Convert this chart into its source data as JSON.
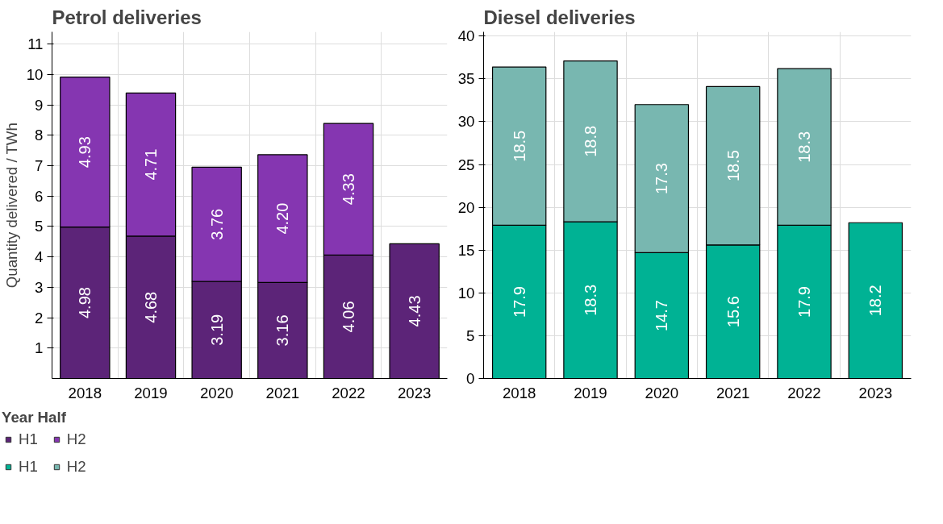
{
  "chart_data": [
    {
      "type": "bar",
      "title": "Petrol deliveries",
      "ylabel": "Quantity delivered / TWh",
      "legend_title": "Year Half",
      "stacked": true,
      "grid": true,
      "legend": "bottom left",
      "categories": [
        "2018",
        "2019",
        "2020",
        "2021",
        "2022",
        "2023"
      ],
      "ylim": [
        0,
        11.4
      ],
      "yticks": [
        1,
        2,
        3,
        4,
        5,
        6,
        7,
        8,
        9,
        10,
        11
      ],
      "series": [
        {
          "name": "H1",
          "color": "#5c2478",
          "values": [
            4.98,
            4.68,
            3.19,
            3.16,
            4.06,
            4.43
          ],
          "value_labels": [
            "4.98",
            "4.68",
            "3.19",
            "3.16",
            "4.06",
            "4.43"
          ]
        },
        {
          "name": "H2",
          "color": "#8536b1",
          "values": [
            4.93,
            4.71,
            3.76,
            4.2,
            4.33,
            null
          ],
          "value_labels": [
            "4.93",
            "4.71",
            "3.76",
            "4.20",
            "4.33",
            null
          ]
        }
      ]
    },
    {
      "type": "bar",
      "title": "Diesel deliveries",
      "stacked": true,
      "grid": true,
      "legend": "bottom left",
      "categories": [
        "2018",
        "2019",
        "2020",
        "2021",
        "2022",
        "2023"
      ],
      "ylim": [
        0,
        40.5
      ],
      "yticks": [
        0,
        5,
        10,
        15,
        20,
        25,
        30,
        35,
        40
      ],
      "series": [
        {
          "name": "H1",
          "color": "#00b294",
          "values": [
            17.9,
            18.3,
            14.7,
            15.6,
            17.9,
            18.2
          ],
          "value_labels": [
            "17.9",
            "18.3",
            "14.7",
            "15.6",
            "17.9",
            "18.2"
          ]
        },
        {
          "name": "H2",
          "color": "#78b7b0",
          "values": [
            18.5,
            18.8,
            17.3,
            18.5,
            18.3,
            null
          ],
          "value_labels": [
            "18.5",
            "18.8",
            "17.3",
            "18.5",
            "18.3",
            null
          ]
        }
      ]
    }
  ]
}
